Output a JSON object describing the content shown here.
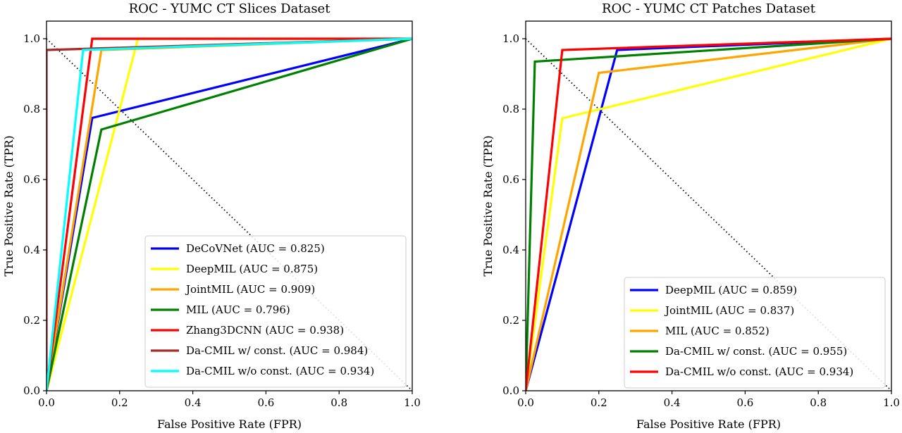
{
  "chart_data": [
    {
      "type": "line",
      "title": "ROC - YUMC CT Slices Dataset",
      "xlabel": "False Positive Rate (FPR)",
      "ylabel": "True Positive Rate (TPR)",
      "xlim": [
        0,
        1
      ],
      "ylim": [
        0,
        1.05
      ],
      "xticks": [
        "0.0",
        "0.2",
        "0.4",
        "0.6",
        "0.8",
        "1.0"
      ],
      "yticks": [
        "0.0",
        "0.2",
        "0.4",
        "0.6",
        "0.8",
        "1.0"
      ],
      "grid": false,
      "legend_position": "lower-right",
      "diagonal": {
        "x": [
          0,
          1
        ],
        "y": [
          1,
          0
        ],
        "style": "dotted"
      },
      "series": [
        {
          "name": "DeCoVNet (AUC = 0.825)",
          "color": "#0000ff",
          "x": [
            0,
            0.125,
            1
          ],
          "y": [
            0,
            0.775,
            1
          ]
        },
        {
          "name": "DeepMIL (AUC = 0.875)",
          "color": "#ffff00",
          "x": [
            0,
            0.25,
            1
          ],
          "y": [
            0,
            1.0,
            1
          ]
        },
        {
          "name": "JointMIL (AUC = 0.909)",
          "color": "#ffa500",
          "x": [
            0,
            0.15,
            1
          ],
          "y": [
            0,
            0.968,
            1
          ]
        },
        {
          "name": "MIL (AUC = 0.796)",
          "color": "#008000",
          "x": [
            0,
            0.15,
            1
          ],
          "y": [
            0,
            0.742,
            1
          ]
        },
        {
          "name": "Zhang3DCNN (AUC = 0.938)",
          "color": "#ff0000",
          "x": [
            0,
            0.125,
            1
          ],
          "y": [
            0,
            1.0,
            1
          ]
        },
        {
          "name": "Da-CMIL w/ const. (AUC = 0.984)",
          "color": "#a52a2a",
          "x": [
            0,
            0,
            1
          ],
          "y": [
            0,
            0.968,
            1
          ]
        },
        {
          "name": "Da-CMIL w/o const. (AUC = 0.934)",
          "color": "#00ffff",
          "x": [
            0,
            0.1,
            1
          ],
          "y": [
            0,
            0.968,
            1
          ]
        }
      ]
    },
    {
      "type": "line",
      "title": "ROC - YUMC CT Patches Dataset",
      "xlabel": "False Positive Rate (FPR)",
      "ylabel": "True Positive Rate (TPR)",
      "xlim": [
        0,
        1
      ],
      "ylim": [
        0,
        1.05
      ],
      "xticks": [
        "0.0",
        "0.2",
        "0.4",
        "0.6",
        "0.8",
        "1.0"
      ],
      "yticks": [
        "0.0",
        "0.2",
        "0.4",
        "0.6",
        "0.8",
        "1.0"
      ],
      "grid": false,
      "legend_position": "lower-right",
      "diagonal": {
        "x": [
          0,
          1
        ],
        "y": [
          1,
          0
        ],
        "style": "dotted"
      },
      "series": [
        {
          "name": "DeepMIL (AUC = 0.859)",
          "color": "#0000ff",
          "x": [
            0,
            0.25,
            1
          ],
          "y": [
            0,
            0.968,
            1
          ]
        },
        {
          "name": "JointMIL (AUC = 0.837)",
          "color": "#ffff00",
          "x": [
            0,
            0.1,
            1
          ],
          "y": [
            0,
            0.774,
            1
          ]
        },
        {
          "name": "MIL (AUC = 0.852)",
          "color": "#ffa500",
          "x": [
            0,
            0.2,
            1
          ],
          "y": [
            0,
            0.903,
            1
          ]
        },
        {
          "name": "Da-CMIL w/ const. (AUC = 0.955)",
          "color": "#008000",
          "x": [
            0,
            0.025,
            1
          ],
          "y": [
            0,
            0.935,
            1
          ]
        },
        {
          "name": "Da-CMIL w/o const. (AUC = 0.934)",
          "color": "#ff0000",
          "x": [
            0,
            0.1,
            1
          ],
          "y": [
            0,
            0.968,
            1
          ]
        }
      ]
    }
  ]
}
